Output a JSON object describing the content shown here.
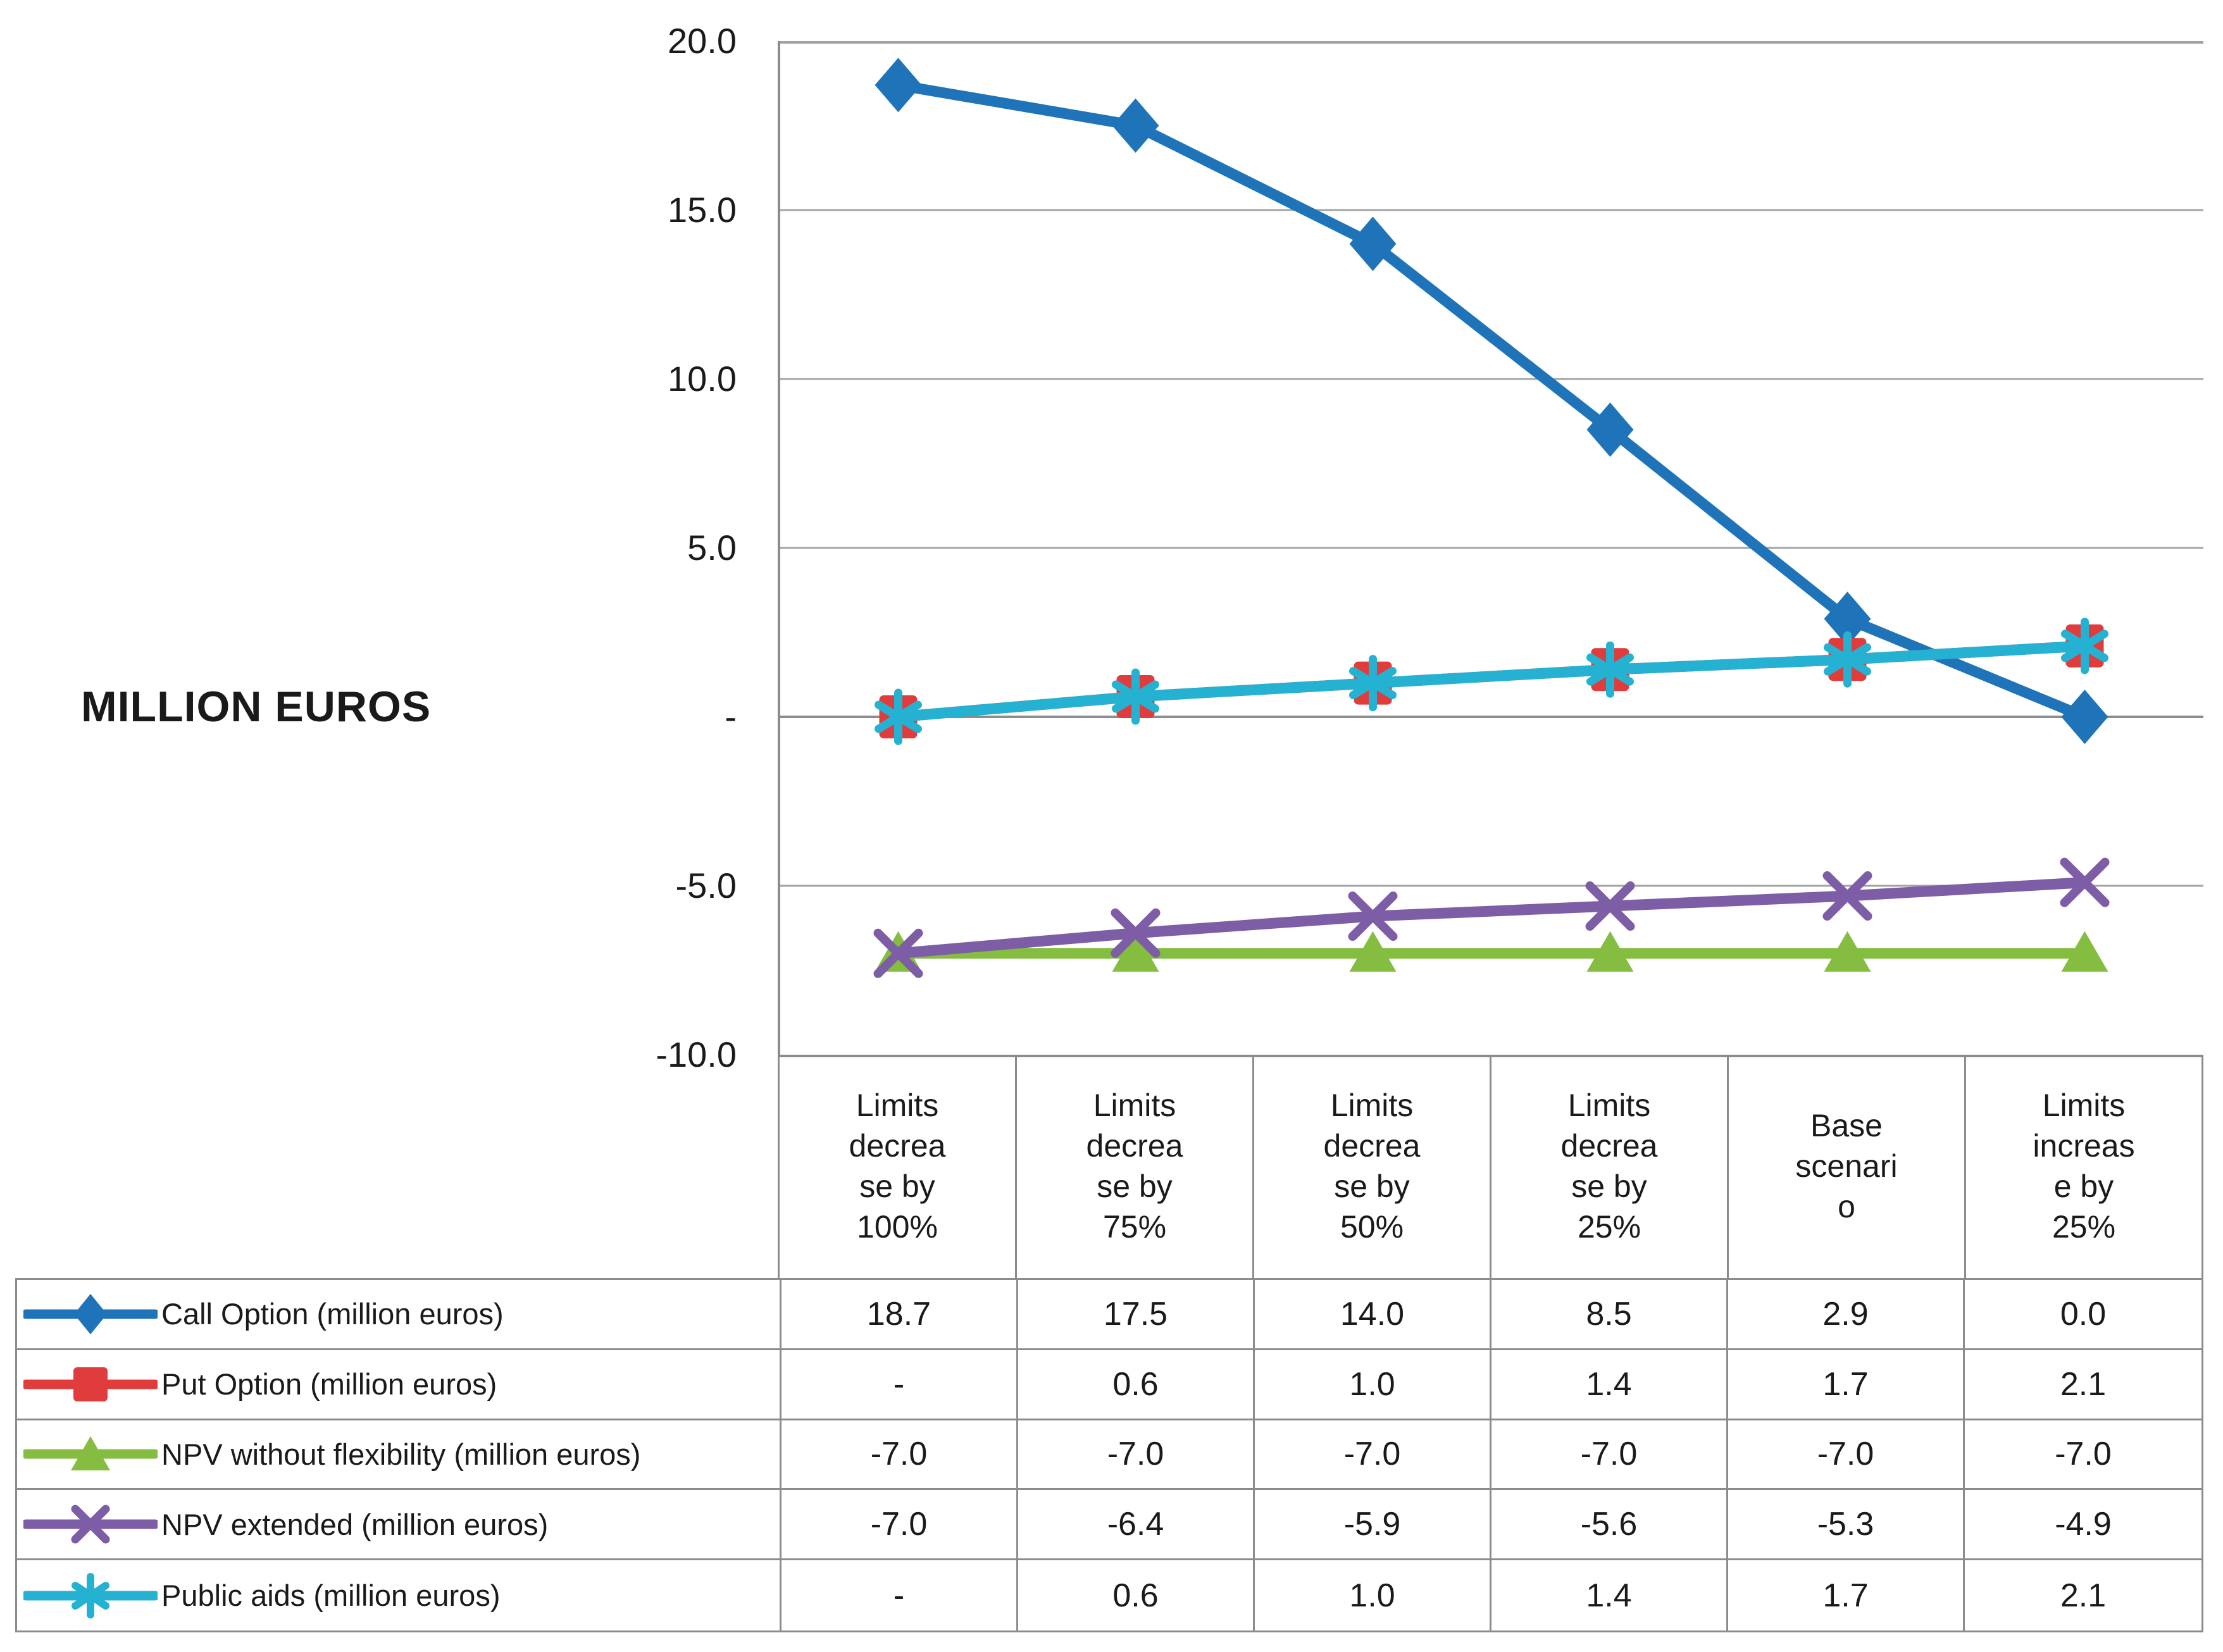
{
  "axis_title": "MILLION EUROS",
  "y_axis": {
    "ticks": [
      "20.0",
      "15.0",
      "10.0",
      "5.0",
      "-",
      "-5.0",
      "-10.0"
    ]
  },
  "chart_data": {
    "type": "line",
    "title": "",
    "xlabel": "",
    "ylabel": "MILLION EUROS",
    "ylim": [
      -10,
      20
    ],
    "gridline_step": 5,
    "grid": true,
    "legend_position": "left-table-column",
    "categories": [
      "Limits decrease by 100%",
      "Limits decrease by 75%",
      "Limits decrease by 50%",
      "Limits decrease by 25%",
      "Base scenario",
      "Limits increase by 25%"
    ],
    "category_labels_display": [
      "Limits\ndecrea\nse by\n100%",
      "Limits\ndecrea\nse by\n75%",
      "Limits\ndecrea\nse by\n50%",
      "Limits\ndecrea\nse by\n25%",
      "Base\nscenari\no",
      "Limits\nincreas\ne by\n25%"
    ],
    "series": [
      {
        "name": "Call Option (million euros)",
        "color": "#1F74B9",
        "marker": "diamond",
        "values": [
          18.7,
          17.5,
          14.0,
          8.5,
          2.9,
          0.0
        ],
        "display_values": [
          "18.7",
          "17.5",
          "14.0",
          "8.5",
          "2.9",
          "0.0"
        ]
      },
      {
        "name": "Put Option (million euros)",
        "color": "#E03C3C",
        "marker": "square",
        "values": [
          0,
          0.6,
          1.0,
          1.4,
          1.7,
          2.1
        ],
        "display_values": [
          "-",
          "0.6",
          "1.0",
          "1.4",
          "1.7",
          "2.1"
        ]
      },
      {
        "name": "NPV without flexibility (million euros)",
        "color": "#84BD40",
        "marker": "triangle",
        "values": [
          -7.0,
          -7.0,
          -7.0,
          -7.0,
          -7.0,
          -7.0
        ],
        "display_values": [
          "-7.0",
          "-7.0",
          "-7.0",
          "-7.0",
          "-7.0",
          "-7.0"
        ]
      },
      {
        "name": "NPV extended (million euros)",
        "color": "#7C5DA6",
        "marker": "x",
        "values": [
          -7.0,
          -6.4,
          -5.9,
          -5.6,
          -5.3,
          -4.9
        ],
        "display_values": [
          "-7.0",
          "-6.4",
          "-5.9",
          "-5.6",
          "-5.3",
          "-4.9"
        ]
      },
      {
        "name": "Public aids (million euros)",
        "color": "#25B2D2",
        "marker": "asterisk",
        "values": [
          0,
          0.6,
          1.0,
          1.4,
          1.7,
          2.1
        ],
        "display_values": [
          "-",
          "0.6",
          "1.0",
          "1.4",
          "1.7",
          "2.1"
        ]
      }
    ],
    "colors": {
      "gridline": "#A3A3A3",
      "zero_line": "#8C8C8C",
      "plot_border": "#A3A3A3",
      "table_border": "#8C8C8C",
      "text": "#1A1A1A"
    }
  }
}
